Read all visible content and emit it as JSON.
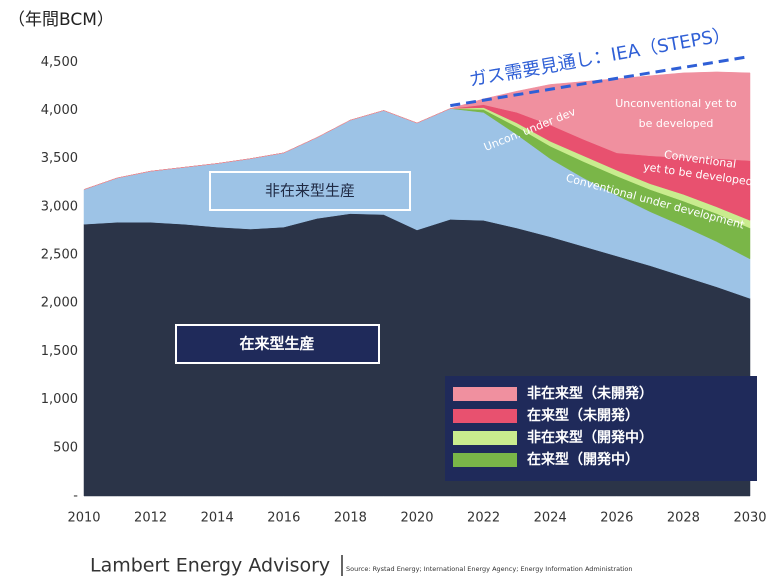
{
  "chart_data": {
    "type": "stacked_area",
    "y_unit_label": "（年間BCM）",
    "x": [
      2010,
      2011,
      2012,
      2013,
      2014,
      2015,
      2016,
      2017,
      2018,
      2019,
      2020,
      2021,
      2022,
      2023,
      2024,
      2025,
      2026,
      2027,
      2028,
      2029,
      2030
    ],
    "xlim": [
      2010,
      2030
    ],
    "xticks": [
      2010,
      2012,
      2014,
      2016,
      2018,
      2020,
      2022,
      2024,
      2026,
      2028,
      2030
    ],
    "ylim": [
      0,
      4700
    ],
    "yticks": [
      {
        "value": 0,
        "label": "-"
      },
      500,
      {
        "value": 1000,
        "label": "1,000"
      },
      {
        "value": 1500,
        "label": "1,500"
      },
      {
        "value": 2000,
        "label": "2,000"
      },
      {
        "value": 2500,
        "label": "2,500"
      },
      {
        "value": 3000,
        "label": "3,000"
      },
      {
        "value": 3500,
        "label": "3,500"
      },
      {
        "value": 4000,
        "label": "4,000"
      },
      {
        "value": 4500,
        "label": "4,500"
      }
    ],
    "series": [
      {
        "name": "在来型生産",
        "color": "#2b3448",
        "values": [
          2820,
          2840,
          2840,
          2820,
          2790,
          2770,
          2790,
          2880,
          2930,
          2920,
          2760,
          2870,
          2860,
          2780,
          2690,
          2590,
          2490,
          2390,
          2280,
          2170,
          2050
        ]
      },
      {
        "name": "非在来型生産",
        "color": "#9dc3e6",
        "values": [
          360,
          460,
          530,
          590,
          660,
          730,
          770,
          840,
          970,
          1080,
          1110,
          1150,
          1120,
          970,
          810,
          710,
          630,
          560,
          520,
          470,
          410
        ]
      },
      {
        "name": "在来型（開発中）",
        "color": "#7ab648",
        "values": [
          0,
          0,
          0,
          0,
          0,
          0,
          0,
          0,
          0,
          0,
          0,
          0,
          30,
          80,
          130,
          170,
          200,
          230,
          260,
          290,
          320
        ]
      },
      {
        "name": "非在来型（開発中）",
        "color": "#c9ec8e",
        "values": [
          0,
          0,
          0,
          0,
          0,
          0,
          0,
          0,
          0,
          0,
          0,
          0,
          20,
          40,
          50,
          60,
          60,
          60,
          70,
          70,
          80
        ]
      },
      {
        "name": "在来型（未開発）",
        "color": "#e8516f",
        "values": [
          0,
          0,
          0,
          0,
          0,
          0,
          0,
          0,
          0,
          0,
          0,
          0,
          30,
          110,
          170,
          170,
          180,
          290,
          380,
          500,
          620
        ]
      },
      {
        "name": "非在来型（未開発）",
        "color": "#f0909f",
        "values": [
          0,
          0,
          0,
          0,
          0,
          0,
          0,
          0,
          0,
          0,
          0,
          0,
          60,
          220,
          420,
          600,
          770,
          830,
          880,
          900,
          910
        ]
      }
    ],
    "forecast_line": {
      "label": "ガス需要見通し：IEA（STEPS）",
      "color": "#2f5fd6",
      "x": [
        2021,
        2030
      ],
      "values": [
        4050,
        4560
      ]
    },
    "annotations": [
      {
        "lines": [
          "Unconventional yet to",
          "be developed"
        ]
      },
      {
        "lines": [
          "Conventional",
          "yet to be developed"
        ]
      },
      {
        "lines": [
          "Uncon. under dev"
        ]
      },
      {
        "lines": [
          "Conventional under development"
        ]
      }
    ],
    "footer": {
      "brand": "Lambert Energy Advisory",
      "source": "Source: Rystad Energy; International Energy Agency; Energy Information Administration"
    }
  }
}
